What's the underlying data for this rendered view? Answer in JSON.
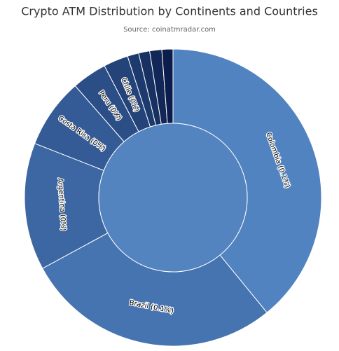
{
  "chart_data": {
    "type": "sunburst",
    "title": "Crypto ATM Distribution by Continents and Countries",
    "subtitle": "Source: coinatmradar.com",
    "inner": {
      "values": [
        0.3573
      ],
      "color": "#5384c0"
    },
    "categories": [
      "Colombia",
      "Brazil",
      "Argentina",
      "Costa Rica",
      "Peru",
      "Chile",
      null,
      null,
      null,
      null
    ],
    "values": [
      0.1397,
      0.1,
      0.0495,
      0.0272,
      0.0136,
      0.0096,
      0.0044,
      0.0043,
      0.0047,
      0.0043
    ],
    "value_labels": [
      "Colombia (0.1%)",
      "Brazil (0.1%)",
      "Argentina (0%)",
      "Costa Rica (0%)",
      "Peru (0%)",
      "Chile (0%)",
      null,
      null,
      null,
      null
    ],
    "colors": [
      "#5283c1",
      "#4674b0",
      "#3d67a3",
      "#345b95",
      "#2b4e87",
      "#244379",
      "#1d3a6e",
      "#183163",
      "#122758",
      "#0c1d4b"
    ]
  }
}
